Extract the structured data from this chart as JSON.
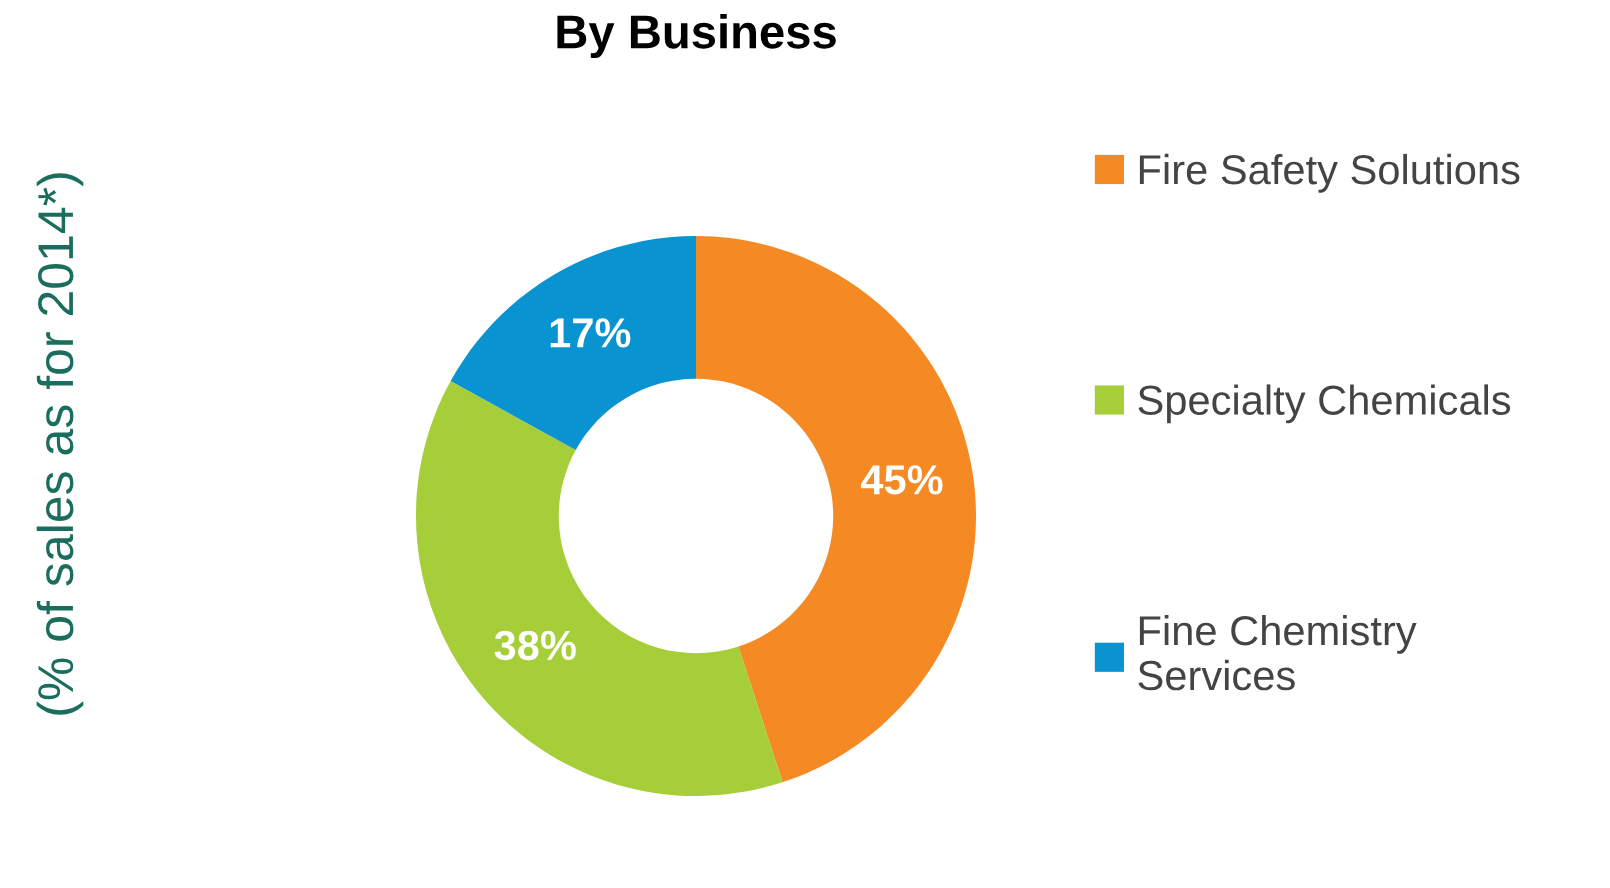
{
  "chart_data": {
    "type": "donut",
    "title": "By Business",
    "ylabel": "(% of sales as for 2014*)",
    "categories": [
      "Fire Safety Solutions",
      "Specialty Chemicals",
      "Fine Chemistry\nServices"
    ],
    "values": [
      45,
      38,
      17
    ],
    "value_labels": [
      "45%",
      "38%",
      "17%"
    ],
    "colors": [
      "#f58a24",
      "#a6ce39",
      "#0a93d1"
    ],
    "legend": "right"
  }
}
